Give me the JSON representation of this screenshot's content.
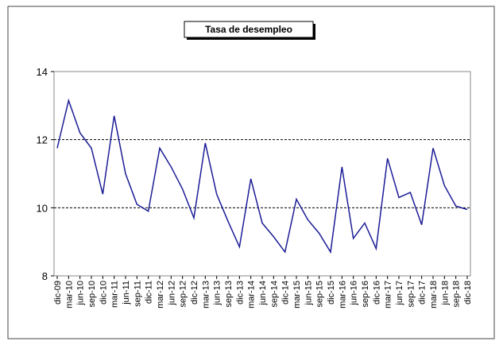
{
  "chart_data": {
    "type": "line",
    "title": "Tasa de desempleo",
    "categories": [
      "dic-09",
      "mar-10",
      "jun-10",
      "sep-10",
      "dic-10",
      "mar-11",
      "jun-11",
      "sep-11",
      "dic-11",
      "mar-12",
      "jun-12",
      "sep-12",
      "dic-12",
      "mar-13",
      "jun-13",
      "sep-13",
      "dic-13",
      "mar-14",
      "jun-14",
      "sep-14",
      "dic-14",
      "mar-15",
      "jun-15",
      "sep-15",
      "dic-15",
      "mar-16",
      "jun-16",
      "sep-16",
      "dic-16",
      "mar-17",
      "jun-17",
      "sep-17",
      "dic-17",
      "mar-18",
      "jun-18",
      "sep-18",
      "dic-18"
    ],
    "series": [
      {
        "name": "Tasa de desempleo",
        "color": "#1c1c96",
        "values": [
          11.75,
          13.15,
          12.2,
          11.75,
          10.4,
          12.7,
          11.0,
          10.1,
          9.9,
          11.75,
          11.2,
          10.55,
          9.7,
          11.9,
          10.4,
          9.6,
          8.85,
          10.85,
          9.55,
          9.15,
          8.7,
          10.25,
          9.65,
          9.25,
          8.7,
          11.2,
          9.1,
          9.55,
          8.8,
          11.45,
          10.3,
          10.45,
          9.5,
          11.75,
          10.65,
          10.05,
          9.95
        ]
      }
    ],
    "ylim": [
      8,
      14
    ],
    "yticks": [
      8,
      10,
      12,
      14
    ],
    "grid": true
  }
}
